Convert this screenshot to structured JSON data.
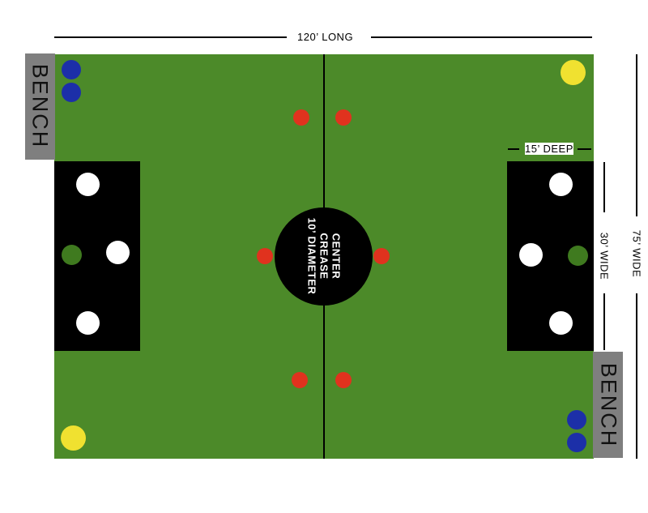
{
  "dimensions": {
    "length": "120’ LONG",
    "width": "75’ WIDE",
    "goal_depth": "15’ DEEP",
    "goal_width": "30’ WIDE"
  },
  "center_crease": {
    "line1": "CENTER",
    "line2": "CREASE",
    "line3": "10’ DIAMETER"
  },
  "benches": {
    "left": "BENCH",
    "right": "BENCH"
  },
  "colors": {
    "field": "#4c8a29",
    "goal_area": "#000000",
    "bench": "#7f7f7f",
    "player_white": "#ffffff",
    "player_green": "#3f7a1f",
    "player_red": "#e0321e",
    "player_blue": "#1c2fa8",
    "player_yellow": "#f0e130"
  }
}
